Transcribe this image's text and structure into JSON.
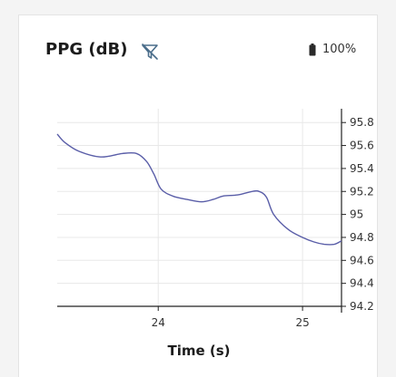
{
  "header": {
    "title": "PPG (dB)",
    "filter_icon": "filter-off-icon",
    "battery_icon": "battery-icon",
    "battery_level": "100%"
  },
  "colors": {
    "line": "#5a5ea8",
    "grid": "#e8e8e8",
    "axis": "#222222"
  },
  "chart_data": {
    "type": "line",
    "title": "PPG (dB)",
    "xlabel": "Time (s)",
    "ylabel": "",
    "xlim": [
      23.3,
      25.27
    ],
    "ylim": [
      94.2,
      95.92
    ],
    "xticks": [
      24,
      25
    ],
    "yticks": [
      94.2,
      94.4,
      94.6,
      94.8,
      95,
      95.2,
      95.4,
      95.6,
      95.8
    ],
    "ytick_labels": [
      "94.2",
      "94.4",
      "94.6",
      "94.8",
      "95",
      "95.2",
      "95.4",
      "95.6",
      "95.8"
    ],
    "grid": true,
    "y_axis_side": "right",
    "series": [
      {
        "x": [
          23.3,
          23.35,
          23.45,
          23.6,
          23.75,
          23.85,
          23.92,
          23.97,
          24.02,
          24.1,
          24.2,
          24.3,
          24.38,
          24.45,
          24.55,
          24.65,
          24.7,
          24.75,
          24.8,
          24.9,
          25.0,
          25.08,
          25.15,
          25.22,
          25.27
        ],
        "y": [
          95.7,
          95.63,
          95.55,
          95.5,
          95.53,
          95.53,
          95.46,
          95.35,
          95.22,
          95.16,
          95.13,
          95.11,
          95.13,
          95.16,
          95.17,
          95.2,
          95.2,
          95.15,
          95.0,
          94.87,
          94.8,
          94.76,
          94.74,
          94.74,
          94.77
        ]
      }
    ]
  }
}
